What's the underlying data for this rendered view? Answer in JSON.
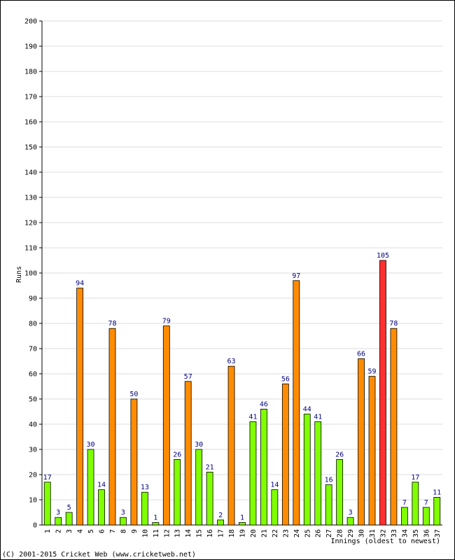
{
  "chart_data": {
    "type": "bar",
    "y_label": "Runs",
    "x_label": "Innings (oldest to newest)",
    "footer": "(C) 2001-2015 Cricket Web (www.cricketweb.net)",
    "categories": [
      "1",
      "2",
      "3",
      "4",
      "5",
      "6",
      "7",
      "8",
      "9",
      "10",
      "11",
      "12",
      "13",
      "14",
      "15",
      "16",
      "17",
      "18",
      "19",
      "20",
      "21",
      "22",
      "23",
      "24",
      "25",
      "26",
      "27",
      "28",
      "29",
      "30",
      "31",
      "32",
      "33",
      "34",
      "35",
      "36",
      "37"
    ],
    "values": [
      17,
      3,
      5,
      94,
      30,
      14,
      78,
      3,
      50,
      13,
      1,
      79,
      26,
      57,
      30,
      21,
      2,
      63,
      1,
      41,
      46,
      14,
      56,
      97,
      44,
      41,
      16,
      26,
      3,
      66,
      59,
      105,
      78,
      7,
      17,
      7,
      11
    ],
    "colors": [
      "#80ff00",
      "#80ff00",
      "#80ff00",
      "#ff8c00",
      "#80ff00",
      "#80ff00",
      "#ff8c00",
      "#80ff00",
      "#ff8c00",
      "#80ff00",
      "#80ff00",
      "#ff8c00",
      "#80ff00",
      "#ff8c00",
      "#80ff00",
      "#80ff00",
      "#80ff00",
      "#ff8c00",
      "#80ff00",
      "#80ff00",
      "#80ff00",
      "#80ff00",
      "#ff8c00",
      "#ff8c00",
      "#80ff00",
      "#80ff00",
      "#80ff00",
      "#80ff00",
      "#80ff00",
      "#ff8c00",
      "#ff8c00",
      "#ff3030",
      "#ff8c00",
      "#80ff00",
      "#80ff00",
      "#80ff00",
      "#80ff00"
    ],
    "ylim": [
      0,
      200
    ],
    "yticks": [
      0,
      10,
      20,
      30,
      40,
      50,
      60,
      70,
      80,
      90,
      100,
      110,
      120,
      130,
      140,
      150,
      160,
      170,
      180,
      190,
      200
    ],
    "grid": true
  }
}
